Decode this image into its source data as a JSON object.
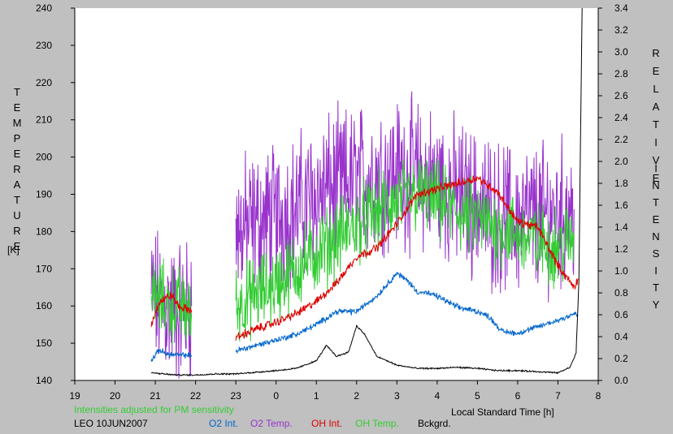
{
  "chart_data": {
    "type": "line",
    "left_axis": {
      "title_letters": [
        "T",
        "E",
        "M",
        "P",
        "E",
        "R",
        "A",
        "T",
        "U",
        "R",
        "E"
      ],
      "unit": "[K]",
      "ylim": [
        140,
        240
      ],
      "ticks": [
        140,
        150,
        160,
        170,
        180,
        190,
        200,
        210,
        220,
        230,
        240
      ]
    },
    "right_axis": {
      "title1_letters": [
        "R",
        "E",
        "L",
        "A",
        "T",
        "I",
        "V",
        "E"
      ],
      "title2_letters": [
        "I",
        "N",
        "T",
        "E",
        "N",
        "S",
        "I",
        "T",
        "Y"
      ],
      "ylim": [
        0.0,
        3.4
      ],
      "ticks": [
        "0.0",
        "0.2",
        "0.4",
        "0.6",
        "0.8",
        "1.0",
        "1.2",
        "1.4",
        "1.6",
        "1.8",
        "2.0",
        "2.2",
        "2.4",
        "2.6",
        "2.8",
        "3.0",
        "3.2",
        "3.4"
      ]
    },
    "x_axis": {
      "label": "Local Standard Time [h]",
      "tick_labels": [
        "19",
        "20",
        "21",
        "22",
        "23",
        "0",
        "1",
        "2",
        "3",
        "4",
        "5",
        "6",
        "7",
        "8"
      ],
      "xlim": [
        19,
        32
      ]
    },
    "note": "Intensities adjusted for PM sensitivity",
    "station": "LEO 10JUN2007",
    "legend": [
      {
        "name": "O2 Int.",
        "color": "#0066cc"
      },
      {
        "name": "O2 Temp.",
        "color": "#9933cc"
      },
      {
        "name": "OH Int.",
        "color": "#dd0000"
      },
      {
        "name": "OH Temp.",
        "color": "#33cc33"
      },
      {
        "name": "Bckgrd.",
        "color": "#000000"
      }
    ],
    "series": [
      {
        "name": "O2 Temp.",
        "axis": "left",
        "color": "#9933cc",
        "noise": 15,
        "segments": [
          [
            [
              20.9,
              162
            ],
            [
              21.2,
              160
            ],
            [
              21.5,
              158
            ],
            [
              21.9,
              160
            ]
          ],
          [
            [
              23.0,
              180
            ],
            [
              23.5,
              182
            ],
            [
              24.0,
              184
            ],
            [
              24.5,
              186
            ],
            [
              25.0,
              190
            ],
            [
              25.5,
              192
            ],
            [
              26.0,
              194
            ],
            [
              26.5,
              195
            ],
            [
              27.0,
              196
            ],
            [
              27.5,
              195
            ],
            [
              28.0,
              193
            ],
            [
              28.5,
              190
            ],
            [
              29.0,
              187
            ],
            [
              29.5,
              184
            ],
            [
              30.0,
              183
            ],
            [
              30.5,
              184
            ],
            [
              31.0,
              185
            ],
            [
              31.4,
              186
            ]
          ]
        ]
      },
      {
        "name": "OH Temp.",
        "axis": "left",
        "color": "#33cc33",
        "noise": 8,
        "segments": [
          [
            [
              20.9,
              162
            ],
            [
              21.3,
              161
            ],
            [
              21.6,
              160
            ],
            [
              21.9,
              158
            ]
          ],
          [
            [
              23.0,
              160
            ],
            [
              23.5,
              163
            ],
            [
              24.0,
              166
            ],
            [
              24.5,
              170
            ],
            [
              25.0,
              174
            ],
            [
              25.5,
              178
            ],
            [
              26.0,
              182
            ],
            [
              26.5,
              185
            ],
            [
              27.0,
              188
            ],
            [
              27.5,
              190
            ],
            [
              28.0,
              188
            ],
            [
              28.5,
              185
            ],
            [
              29.0,
              183
            ],
            [
              29.5,
              181
            ],
            [
              30.0,
              179
            ],
            [
              30.5,
              177
            ],
            [
              31.0,
              176
            ],
            [
              31.4,
              178
            ]
          ]
        ]
      },
      {
        "name": "OH Int.",
        "axis": "right",
        "color": "#dd0000",
        "noise": 0.03,
        "segments": [
          [
            [
              20.9,
              0.51
            ],
            [
              21.1,
              0.72
            ],
            [
              21.4,
              0.78
            ],
            [
              21.6,
              0.67
            ],
            [
              21.9,
              0.64
            ]
          ],
          [
            [
              23.0,
              0.39
            ],
            [
              23.5,
              0.47
            ],
            [
              24.0,
              0.53
            ],
            [
              24.5,
              0.61
            ],
            [
              25.0,
              0.72
            ],
            [
              25.5,
              0.89
            ],
            [
              26.0,
              1.13
            ],
            [
              26.5,
              1.21
            ],
            [
              27.0,
              1.43
            ],
            [
              27.5,
              1.7
            ],
            [
              28.0,
              1.75
            ],
            [
              28.5,
              1.8
            ],
            [
              29.0,
              1.85
            ],
            [
              29.5,
              1.72
            ],
            [
              30.0,
              1.45
            ],
            [
              30.5,
              1.4
            ],
            [
              31.0,
              1.05
            ],
            [
              31.4,
              0.85
            ],
            [
              31.5,
              0.93
            ]
          ]
        ]
      },
      {
        "name": "O2 Int.",
        "axis": "right",
        "color": "#0066cc",
        "noise": 0.02,
        "segments": [
          [
            [
              20.9,
              0.18
            ],
            [
              21.1,
              0.28
            ],
            [
              21.3,
              0.24
            ],
            [
              21.6,
              0.23
            ],
            [
              21.9,
              0.23
            ]
          ],
          [
            [
              23.0,
              0.27
            ],
            [
              23.5,
              0.32
            ],
            [
              24.0,
              0.37
            ],
            [
              24.5,
              0.42
            ],
            [
              25.0,
              0.51
            ],
            [
              25.5,
              0.63
            ],
            [
              26.0,
              0.63
            ],
            [
              26.5,
              0.77
            ],
            [
              27.0,
              0.98
            ],
            [
              27.3,
              0.9
            ],
            [
              27.5,
              0.81
            ],
            [
              27.7,
              0.8
            ],
            [
              28.0,
              0.77
            ],
            [
              28.5,
              0.67
            ],
            [
              29.0,
              0.63
            ],
            [
              29.3,
              0.58
            ],
            [
              29.6,
              0.45
            ],
            [
              30.0,
              0.43
            ],
            [
              30.5,
              0.49
            ],
            [
              31.0,
              0.55
            ],
            [
              31.4,
              0.61
            ],
            [
              31.5,
              0.59
            ]
          ]
        ]
      },
      {
        "name": "Bckgrd.",
        "axis": "right",
        "color": "#000000",
        "noise": 0.005,
        "segments": [
          [
            [
              20.9,
              0.07
            ],
            [
              21.5,
              0.05
            ],
            [
              22.0,
              0.05
            ],
            [
              22.5,
              0.06
            ],
            [
              23.0,
              0.06
            ],
            [
              24.0,
              0.09
            ],
            [
              24.5,
              0.11
            ],
            [
              25.0,
              0.18
            ],
            [
              25.25,
              0.32
            ],
            [
              25.5,
              0.22
            ],
            [
              25.8,
              0.26
            ],
            [
              26.0,
              0.5
            ],
            [
              26.2,
              0.42
            ],
            [
              26.5,
              0.22
            ],
            [
              27.0,
              0.14
            ],
            [
              27.5,
              0.11
            ],
            [
              28.0,
              0.11
            ],
            [
              28.5,
              0.12
            ],
            [
              29.0,
              0.11
            ],
            [
              29.5,
              0.09
            ],
            [
              30.0,
              0.09
            ],
            [
              30.5,
              0.08
            ],
            [
              31.0,
              0.07
            ],
            [
              31.3,
              0.12
            ],
            [
              31.45,
              0.25
            ],
            [
              31.52,
              0.9
            ],
            [
              31.56,
              2.2
            ],
            [
              31.6,
              3.4
            ]
          ]
        ]
      }
    ]
  }
}
